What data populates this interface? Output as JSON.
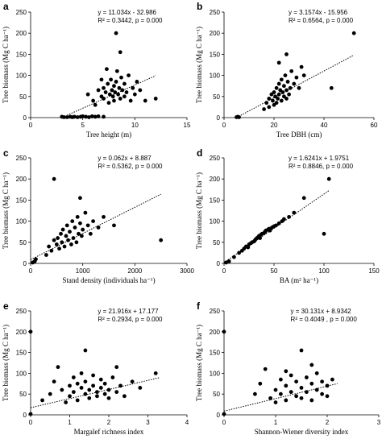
{
  "chart_data": [
    {
      "type": "scatter",
      "panel": "a",
      "xlabel": "Tree height (m)",
      "ylabel": "Tree biomass (Mg C ha⁻¹)",
      "equation": "y = 11.034x - 32.986",
      "stats": "R² = 0.3442, p = 0.000",
      "xlim": [
        0,
        15
      ],
      "ylim": [
        0,
        250
      ],
      "xticks": [
        0,
        5,
        10,
        15
      ],
      "yticks": [
        0,
        50,
        100,
        150,
        200,
        250
      ],
      "trend": {
        "slope": 11.034,
        "intercept": -32.986,
        "x": [
          3.5,
          12
        ]
      },
      "points": [
        [
          3,
          2
        ],
        [
          3.2,
          1
        ],
        [
          3.5,
          1
        ],
        [
          3.8,
          2
        ],
        [
          4,
          1
        ],
        [
          4.2,
          2
        ],
        [
          4.5,
          1
        ],
        [
          4.8,
          2
        ],
        [
          5,
          3
        ],
        [
          5.3,
          2
        ],
        [
          5.6,
          1
        ],
        [
          5.9,
          3
        ],
        [
          6.2,
          2
        ],
        [
          6.5,
          3
        ],
        [
          7,
          2
        ],
        [
          5.5,
          55
        ],
        [
          6,
          40
        ],
        [
          6.2,
          30
        ],
        [
          6.5,
          65
        ],
        [
          6.8,
          50
        ],
        [
          7,
          70
        ],
        [
          7,
          45
        ],
        [
          7.2,
          60
        ],
        [
          7.4,
          80
        ],
        [
          7.5,
          35
        ],
        [
          7.6,
          55
        ],
        [
          7.7,
          90
        ],
        [
          7.8,
          65
        ],
        [
          7.9,
          50
        ],
        [
          8,
          75
        ],
        [
          8,
          40
        ],
        [
          8.1,
          60
        ],
        [
          8.2,
          85
        ],
        [
          8.3,
          110
        ],
        [
          8.4,
          55
        ],
        [
          8.5,
          70
        ],
        [
          8.6,
          45
        ],
        [
          8.7,
          95
        ],
        [
          8.8,
          65
        ],
        [
          9,
          50
        ],
        [
          9,
          80
        ],
        [
          9.2,
          60
        ],
        [
          9.4,
          100
        ],
        [
          9.6,
          40
        ],
        [
          9.8,
          70
        ],
        [
          10,
          55
        ],
        [
          10.2,
          85
        ],
        [
          10.5,
          65
        ],
        [
          11,
          40
        ],
        [
          12,
          45
        ],
        [
          8.2,
          200
        ],
        [
          8.6,
          155
        ],
        [
          7.3,
          115
        ],
        [
          6.8,
          90
        ]
      ]
    },
    {
      "type": "scatter",
      "panel": "b",
      "xlabel": "Tree DBH (cm)",
      "ylabel": "Tree biomass (Mg C ha⁻¹)",
      "equation": "y = 3.1574x - 15.956",
      "stats": "R² = 0.6564, p = 0.000",
      "xlim": [
        0,
        60
      ],
      "ylim": [
        0,
        250
      ],
      "xticks": [
        0,
        20,
        40,
        60
      ],
      "yticks": [
        0,
        50,
        100,
        150,
        200,
        250
      ],
      "trend": {
        "slope": 3.1574,
        "intercept": -15.956,
        "x": [
          5,
          52
        ]
      },
      "points": [
        [
          5,
          1
        ],
        [
          5.5,
          2
        ],
        [
          6,
          1
        ],
        [
          16,
          20
        ],
        [
          17,
          35
        ],
        [
          18,
          45
        ],
        [
          18,
          25
        ],
        [
          19,
          55
        ],
        [
          19.5,
          40
        ],
        [
          20,
          30
        ],
        [
          20,
          60
        ],
        [
          20.5,
          50
        ],
        [
          21,
          70
        ],
        [
          21,
          35
        ],
        [
          21.5,
          45
        ],
        [
          22,
          80
        ],
        [
          22,
          55
        ],
        [
          22.5,
          65
        ],
        [
          23,
          40
        ],
        [
          23,
          90
        ],
        [
          23.5,
          60
        ],
        [
          24,
          75
        ],
        [
          24,
          50
        ],
        [
          24.5,
          100
        ],
        [
          25,
          65
        ],
        [
          25,
          45
        ],
        [
          25.5,
          85
        ],
        [
          26,
          55
        ],
        [
          26.5,
          70
        ],
        [
          27,
          110
        ],
        [
          28,
          80
        ],
        [
          29,
          95
        ],
        [
          30,
          70
        ],
        [
          31,
          120
        ],
        [
          32,
          100
        ],
        [
          22,
          130
        ],
        [
          25,
          150
        ],
        [
          43,
          70
        ],
        [
          52,
          200
        ]
      ]
    },
    {
      "type": "scatter",
      "panel": "c",
      "xlabel": "Stand density (individuals ha⁻¹)",
      "ylabel": "Tree biomass (Mg C ha⁻¹)",
      "equation": "y = 0.062x + 8.887",
      "stats": "R² = 0.5362, p = 0.000",
      "xlim": [
        0,
        3000
      ],
      "ylim": [
        0,
        250
      ],
      "xticks": [
        0,
        1000,
        2000,
        3000
      ],
      "yticks": [
        0,
        50,
        100,
        150,
        200,
        250
      ],
      "trend": {
        "slope": 0.062,
        "intercept": 8.887,
        "x": [
          0,
          2500
        ]
      },
      "points": [
        [
          40,
          2
        ],
        [
          80,
          5
        ],
        [
          100,
          10
        ],
        [
          300,
          20
        ],
        [
          350,
          40
        ],
        [
          400,
          30
        ],
        [
          450,
          55
        ],
        [
          500,
          45
        ],
        [
          520,
          60
        ],
        [
          550,
          35
        ],
        [
          580,
          70
        ],
        [
          600,
          50
        ],
        [
          620,
          80
        ],
        [
          650,
          40
        ],
        [
          680,
          65
        ],
        [
          700,
          90
        ],
        [
          720,
          55
        ],
        [
          750,
          75
        ],
        [
          780,
          45
        ],
        [
          800,
          100
        ],
        [
          820,
          60
        ],
        [
          850,
          85
        ],
        [
          880,
          50
        ],
        [
          900,
          110
        ],
        [
          920,
          70
        ],
        [
          950,
          95
        ],
        [
          980,
          65
        ],
        [
          1000,
          80
        ],
        [
          1050,
          120
        ],
        [
          1100,
          90
        ],
        [
          1150,
          70
        ],
        [
          1200,
          100
        ],
        [
          1300,
          85
        ],
        [
          1400,
          110
        ],
        [
          1600,
          90
        ],
        [
          450,
          200
        ],
        [
          950,
          155
        ],
        [
          2500,
          55
        ]
      ]
    },
    {
      "type": "scatter",
      "panel": "d",
      "xlabel": "BA (m² ha⁻¹)",
      "ylabel": "Tree biomass (Mg C ha⁻¹)",
      "equation": "y = 1.6241x + 1.9751",
      "stats": "R² = 0.8846, p = 0.000",
      "xlim": [
        0,
        150
      ],
      "ylim": [
        0,
        250
      ],
      "xticks": [
        0,
        50,
        100,
        150
      ],
      "yticks": [
        0,
        50,
        100,
        150,
        200,
        250
      ],
      "trend": {
        "slope": 1.6241,
        "intercept": 1.9751,
        "x": [
          0,
          105
        ]
      },
      "points": [
        [
          2,
          2
        ],
        [
          5,
          5
        ],
        [
          10,
          15
        ],
        [
          15,
          25
        ],
        [
          18,
          30
        ],
        [
          20,
          35
        ],
        [
          22,
          40
        ],
        [
          24,
          38
        ],
        [
          25,
          45
        ],
        [
          27,
          48
        ],
        [
          28,
          50
        ],
        [
          30,
          52
        ],
        [
          31,
          55
        ],
        [
          32,
          58
        ],
        [
          33,
          60
        ],
        [
          34,
          62
        ],
        [
          35,
          65
        ],
        [
          36,
          60
        ],
        [
          37,
          68
        ],
        [
          38,
          70
        ],
        [
          40,
          72
        ],
        [
          41,
          75
        ],
        [
          42,
          78
        ],
        [
          44,
          80
        ],
        [
          45,
          82
        ],
        [
          46,
          78
        ],
        [
          48,
          85
        ],
        [
          50,
          88
        ],
        [
          52,
          90
        ],
        [
          55,
          95
        ],
        [
          58,
          100
        ],
        [
          60,
          105
        ],
        [
          65,
          110
        ],
        [
          70,
          120
        ],
        [
          80,
          155
        ],
        [
          105,
          200
        ],
        [
          100,
          70
        ]
      ]
    },
    {
      "type": "scatter",
      "panel": "e",
      "xlabel": "Margalef richness index",
      "ylabel": "Tree biomass (Mg C ha⁻¹)",
      "equation": "y = 21.916x + 17.177",
      "stats": "R² = 0.2934, p = 0.000",
      "xlim": [
        0,
        4
      ],
      "ylim": [
        0,
        250
      ],
      "xticks": [
        0,
        1,
        2,
        3,
        4
      ],
      "yticks": [
        0,
        50,
        100,
        150,
        200,
        250
      ],
      "trend": {
        "slope": 21.916,
        "intercept": 17.177,
        "x": [
          0,
          3.3
        ]
      },
      "points": [
        [
          0,
          200
        ],
        [
          0,
          2
        ],
        [
          0.3,
          35
        ],
        [
          0.5,
          50
        ],
        [
          0.6,
          80
        ],
        [
          0.7,
          115
        ],
        [
          0.8,
          60
        ],
        [
          0.9,
          30
        ],
        [
          1,
          70
        ],
        [
          1,
          45
        ],
        [
          1.1,
          90
        ],
        [
          1.1,
          55
        ],
        [
          1.2,
          75
        ],
        [
          1.2,
          35
        ],
        [
          1.3,
          65
        ],
        [
          1.3,
          100
        ],
        [
          1.4,
          50
        ],
        [
          1.4,
          80
        ],
        [
          1.5,
          40
        ],
        [
          1.5,
          60
        ],
        [
          1.6,
          95
        ],
        [
          1.6,
          70
        ],
        [
          1.7,
          55
        ],
        [
          1.7,
          45
        ],
        [
          1.8,
          85
        ],
        [
          1.8,
          65
        ],
        [
          1.9,
          50
        ],
        [
          1.9,
          75
        ],
        [
          2,
          60
        ],
        [
          2,
          40
        ],
        [
          2.1,
          90
        ],
        [
          2.2,
          55
        ],
        [
          2.3,
          70
        ],
        [
          2.4,
          45
        ],
        [
          2.6,
          80
        ],
        [
          2.8,
          65
        ],
        [
          3.2,
          100
        ],
        [
          1.4,
          155
        ],
        [
          2.2,
          115
        ]
      ]
    },
    {
      "type": "scatter",
      "panel": "f",
      "xlabel": "Shannon-Wiener diversity index",
      "ylabel": "Tree biomass (Mg C ha⁻¹)",
      "equation": "y = 30.131x + 8.9342",
      "stats": "R² = 0.4049 , p = 0.000",
      "xlim": [
        0,
        3
      ],
      "ylim": [
        0,
        250
      ],
      "xticks": [
        0,
        1,
        2,
        3
      ],
      "yticks": [
        0,
        50,
        100,
        150,
        200,
        250
      ],
      "trend": {
        "slope": 30.131,
        "intercept": 8.9342,
        "x": [
          0,
          2.2
        ]
      },
      "points": [
        [
          0,
          200
        ],
        [
          0,
          2
        ],
        [
          0.6,
          50
        ],
        [
          0.7,
          75
        ],
        [
          0.8,
          110
        ],
        [
          0.9,
          40
        ],
        [
          1,
          60
        ],
        [
          1,
          30
        ],
        [
          1.1,
          85
        ],
        [
          1.1,
          50
        ],
        [
          1.2,
          70
        ],
        [
          1.2,
          35
        ],
        [
          1.3,
          95
        ],
        [
          1.3,
          55
        ],
        [
          1.4,
          45
        ],
        [
          1.4,
          80
        ],
        [
          1.5,
          65
        ],
        [
          1.5,
          40
        ],
        [
          1.6,
          90
        ],
        [
          1.6,
          55
        ],
        [
          1.7,
          75
        ],
        [
          1.7,
          35
        ],
        [
          1.8,
          60
        ],
        [
          1.8,
          100
        ],
        [
          1.9,
          50
        ],
        [
          1.9,
          80
        ],
        [
          2,
          70
        ],
        [
          2,
          45
        ],
        [
          2.1,
          85
        ],
        [
          1.5,
          155
        ],
        [
          1.7,
          120
        ],
        [
          1.2,
          105
        ]
      ]
    }
  ]
}
